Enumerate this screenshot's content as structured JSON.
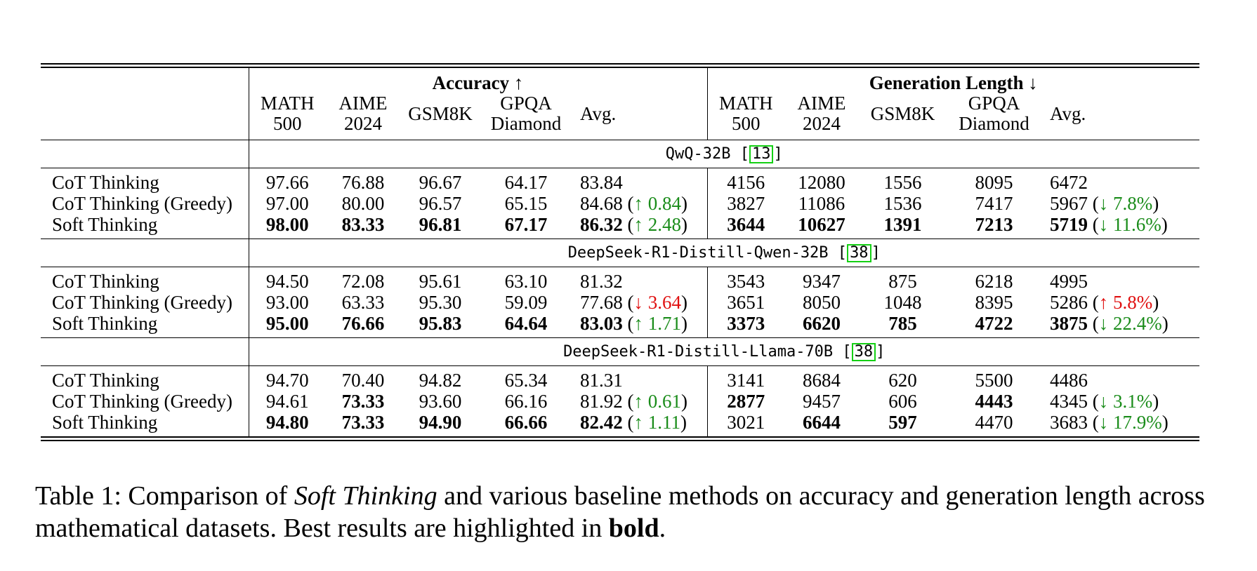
{
  "header": {
    "accuracy_group": "Accuracy ↑",
    "length_group": "Generation Length ↓",
    "columns": [
      {
        "line1": "MATH",
        "line2": "500"
      },
      {
        "line1": "AIME",
        "line2": "2024"
      },
      {
        "line1": "GSM8K",
        "line2": ""
      },
      {
        "line1": "GPQA",
        "line2": "Diamond"
      },
      {
        "line1": "Avg.",
        "line2": ""
      }
    ]
  },
  "sections": [
    {
      "model": "QwQ-32B",
      "cite": "13",
      "rows": [
        {
          "method": "CoT Thinking",
          "acc": [
            {
              "v": "97.66"
            },
            {
              "v": "76.88"
            },
            {
              "v": "96.67"
            },
            {
              "v": "64.17"
            }
          ],
          "acc_avg": {
            "v": "83.84",
            "delta": ""
          },
          "len": [
            {
              "v": "4156"
            },
            {
              "v": "12080"
            },
            {
              "v": "1556"
            },
            {
              "v": "8095"
            }
          ],
          "len_avg": {
            "v": "6472",
            "delta": ""
          }
        },
        {
          "method": "CoT Thinking (Greedy)",
          "acc": [
            {
              "v": "97.00"
            },
            {
              "v": "80.00"
            },
            {
              "v": "96.57"
            },
            {
              "v": "65.15"
            }
          ],
          "acc_avg": {
            "v": "84.68",
            "delta": "↑ 0.84",
            "tone": "good"
          },
          "len": [
            {
              "v": "3827"
            },
            {
              "v": "11086"
            },
            {
              "v": "1536"
            },
            {
              "v": "7417"
            }
          ],
          "len_avg": {
            "v": "5967",
            "delta": "↓ 7.8%",
            "tone": "good"
          }
        },
        {
          "method": "Soft Thinking",
          "acc": [
            {
              "v": "98.00",
              "b": true
            },
            {
              "v": "83.33",
              "b": true
            },
            {
              "v": "96.81",
              "b": true
            },
            {
              "v": "67.17",
              "b": true
            }
          ],
          "acc_avg": {
            "v": "86.32",
            "b": true,
            "delta": "↑ 2.48",
            "tone": "good"
          },
          "len": [
            {
              "v": "3644",
              "b": true
            },
            {
              "v": "10627",
              "b": true
            },
            {
              "v": "1391",
              "b": true
            },
            {
              "v": "7213",
              "b": true
            }
          ],
          "len_avg": {
            "v": "5719",
            "b": true,
            "delta": "↓ 11.6%",
            "tone": "good"
          }
        }
      ]
    },
    {
      "model": "DeepSeek-R1-Distill-Qwen-32B",
      "cite": "38",
      "rows": [
        {
          "method": "CoT Thinking",
          "acc": [
            {
              "v": "94.50"
            },
            {
              "v": "72.08"
            },
            {
              "v": "95.61"
            },
            {
              "v": "63.10"
            }
          ],
          "acc_avg": {
            "v": "81.32",
            "delta": ""
          },
          "len": [
            {
              "v": "3543"
            },
            {
              "v": "9347"
            },
            {
              "v": "875"
            },
            {
              "v": "6218"
            }
          ],
          "len_avg": {
            "v": "4995",
            "delta": ""
          }
        },
        {
          "method": "CoT Thinking (Greedy)",
          "acc": [
            {
              "v": "93.00"
            },
            {
              "v": "63.33"
            },
            {
              "v": "95.30"
            },
            {
              "v": "59.09"
            }
          ],
          "acc_avg": {
            "v": "77.68",
            "delta": "↓ 3.64",
            "tone": "bad"
          },
          "len": [
            {
              "v": "3651"
            },
            {
              "v": "8050"
            },
            {
              "v": "1048"
            },
            {
              "v": "8395"
            }
          ],
          "len_avg": {
            "v": "5286",
            "delta": "↑ 5.8%",
            "tone": "bad"
          }
        },
        {
          "method": "Soft Thinking",
          "acc": [
            {
              "v": "95.00",
              "b": true
            },
            {
              "v": "76.66",
              "b": true
            },
            {
              "v": "95.83",
              "b": true
            },
            {
              "v": "64.64",
              "b": true
            }
          ],
          "acc_avg": {
            "v": "83.03",
            "b": true,
            "delta": "↑ 1.71",
            "tone": "good"
          },
          "len": [
            {
              "v": "3373",
              "b": true
            },
            {
              "v": "6620",
              "b": true
            },
            {
              "v": "785",
              "b": true
            },
            {
              "v": "4722",
              "b": true
            }
          ],
          "len_avg": {
            "v": "3875",
            "b": true,
            "delta": "↓ 22.4%",
            "tone": "good"
          }
        }
      ]
    },
    {
      "model": "DeepSeek-R1-Distill-Llama-70B",
      "cite": "38",
      "rows": [
        {
          "method": "CoT Thinking",
          "acc": [
            {
              "v": "94.70"
            },
            {
              "v": "70.40"
            },
            {
              "v": "94.82"
            },
            {
              "v": "65.34"
            }
          ],
          "acc_avg": {
            "v": "81.31",
            "delta": ""
          },
          "len": [
            {
              "v": "3141"
            },
            {
              "v": "8684"
            },
            {
              "v": "620"
            },
            {
              "v": "5500"
            }
          ],
          "len_avg": {
            "v": "4486",
            "delta": ""
          }
        },
        {
          "method": "CoT Thinking (Greedy)",
          "acc": [
            {
              "v": "94.61"
            },
            {
              "v": "73.33",
              "b": true
            },
            {
              "v": "93.60"
            },
            {
              "v": "66.16"
            }
          ],
          "acc_avg": {
            "v": "81.92",
            "delta": "↑ 0.61",
            "tone": "good"
          },
          "len": [
            {
              "v": "2877",
              "b": true
            },
            {
              "v": "9457"
            },
            {
              "v": "606"
            },
            {
              "v": "4443",
              "b": true
            }
          ],
          "len_avg": {
            "v": "4345",
            "delta": "↓ 3.1%",
            "tone": "good"
          }
        },
        {
          "method": "Soft Thinking",
          "acc": [
            {
              "v": "94.80",
              "b": true
            },
            {
              "v": "73.33",
              "b": true
            },
            {
              "v": "94.90",
              "b": true
            },
            {
              "v": "66.66",
              "b": true
            }
          ],
          "acc_avg": {
            "v": "82.42",
            "b": true,
            "delta": "↑ 1.11",
            "tone": "good"
          },
          "len": [
            {
              "v": "3021"
            },
            {
              "v": "6644",
              "b": true
            },
            {
              "v": "597",
              "b": true
            },
            {
              "v": "4470"
            }
          ],
          "len_avg": {
            "v": "3683",
            "delta": "↓ 17.9%",
            "tone": "good"
          }
        }
      ]
    }
  ],
  "caption": {
    "prefix": "Table 1:  Comparison of ",
    "italic": "Soft Thinking",
    "middle": " and various baseline methods on accuracy and generation length across mathematical datasets. Best results are highlighted in ",
    "bold": "bold",
    "suffix": "."
  },
  "colors": {
    "good": "#1a8c1a",
    "bad": "#e01010",
    "cite_box": "#14d014"
  }
}
